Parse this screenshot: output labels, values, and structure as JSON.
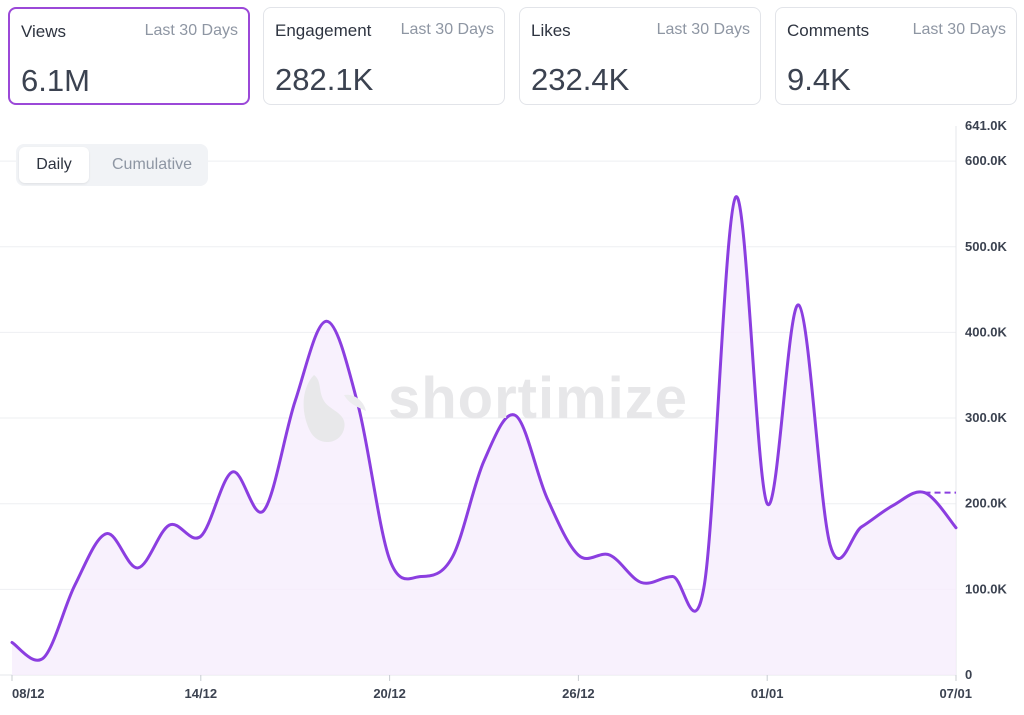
{
  "metric_cards": [
    {
      "title": "Views",
      "period": "Last 30 Days",
      "value": "6.1M",
      "selected": true
    },
    {
      "title": "Engagement",
      "period": "Last 30 Days",
      "value": "282.1K",
      "selected": false
    },
    {
      "title": "Likes",
      "period": "Last 30 Days",
      "value": "232.4K",
      "selected": false
    },
    {
      "title": "Comments",
      "period": "Last 30 Days",
      "value": "9.4K",
      "selected": false
    }
  ],
  "view_toggle": {
    "options": [
      "Daily",
      "Cumulative"
    ],
    "selected": "Daily"
  },
  "watermark": {
    "text": "shortimize"
  },
  "colors": {
    "accent": "#9b48d8",
    "line": "#8b3ee0",
    "fill": "#f6eefc",
    "grid": "#eeeff2"
  },
  "chart_data": {
    "type": "area",
    "series": [
      {
        "values": [
          38000,
          20000,
          105000,
          165000,
          125000,
          175000,
          162000,
          237000,
          192000,
          320000,
          413000,
          315000,
          135000,
          115000,
          138000,
          250000,
          303000,
          207000,
          140000,
          140000,
          108000,
          115000,
          105000,
          558000,
          200000,
          432000,
          152000,
          173000,
          198000,
          213000,
          172000
        ]
      }
    ],
    "x_dates": [
      "08/12",
      "09/12",
      "10/12",
      "11/12",
      "12/12",
      "13/12",
      "14/12",
      "15/12",
      "16/12",
      "17/12",
      "18/12",
      "19/12",
      "20/12",
      "21/12",
      "22/12",
      "23/12",
      "24/12",
      "25/12",
      "26/12",
      "27/12",
      "28/12",
      "29/12",
      "30/12",
      "31/12",
      "01/01",
      "02/01",
      "03/01",
      "04/01",
      "05/01",
      "06/01",
      "07/01"
    ],
    "x_tick_labels": [
      "08/12",
      "14/12",
      "20/12",
      "26/12",
      "01/01",
      "07/01"
    ],
    "y_tick_labels": [
      "0",
      "100.0K",
      "200.0K",
      "300.0K",
      "400.0K",
      "500.0K",
      "600.0K",
      "641.0K"
    ],
    "y_ticks": [
      0,
      100000,
      200000,
      300000,
      400000,
      500000,
      600000,
      641000
    ],
    "ylim": [
      0,
      641000
    ],
    "reference_value": 213000,
    "grid": true,
    "y_axis_side": "right"
  }
}
